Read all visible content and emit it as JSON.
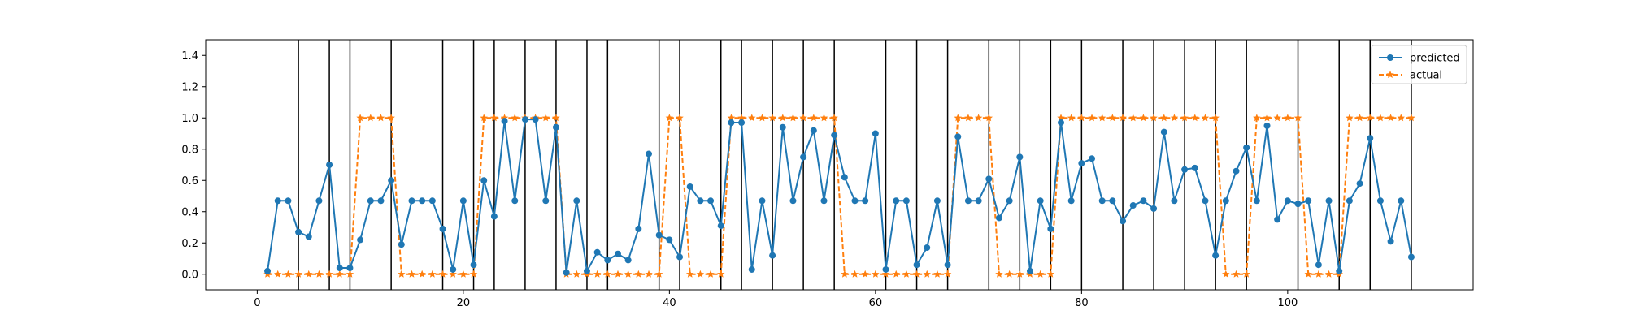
{
  "chart_data": {
    "type": "line",
    "title": "",
    "xlabel": "",
    "ylabel": "",
    "xlim": [
      -5,
      118
    ],
    "ylim": [
      -0.1,
      1.5
    ],
    "xticks": [
      0,
      20,
      40,
      60,
      80,
      100
    ],
    "yticks": [
      0.0,
      0.2,
      0.4,
      0.6,
      0.8,
      1.0,
      1.2,
      1.4
    ],
    "xtick_labels": [
      "0",
      "20",
      "40",
      "60",
      "80",
      "100"
    ],
    "ytick_labels": [
      "0.0",
      "0.2",
      "0.4",
      "0.6",
      "0.8",
      "1.0",
      "1.2",
      "1.4"
    ],
    "legend_position": "top-right",
    "grid": false,
    "boundaries": [
      4,
      7,
      9,
      13,
      18,
      21,
      23,
      26,
      29,
      32,
      34,
      39,
      41,
      45,
      47,
      50,
      53,
      56,
      61,
      64,
      67,
      71,
      74,
      77,
      80,
      84,
      87,
      90,
      93,
      96,
      101,
      105,
      108,
      112
    ],
    "x": [
      1,
      2,
      3,
      4,
      5,
      6,
      7,
      8,
      9,
      10,
      11,
      12,
      13,
      14,
      15,
      16,
      17,
      18,
      19,
      20,
      21,
      22,
      23,
      24,
      25,
      26,
      27,
      28,
      29,
      30,
      31,
      32,
      33,
      34,
      35,
      36,
      37,
      38,
      39,
      40,
      41,
      42,
      43,
      44,
      45,
      46,
      47,
      48,
      49,
      50,
      51,
      52,
      53,
      54,
      55,
      56,
      57,
      58,
      59,
      60,
      61,
      62,
      63,
      64,
      65,
      66,
      67,
      68,
      69,
      70,
      71,
      72,
      73,
      74,
      75,
      76,
      77,
      78,
      79,
      80,
      81,
      82,
      83,
      84,
      85,
      86,
      87,
      88,
      89,
      90,
      91,
      92,
      93,
      94,
      95,
      96,
      97,
      98,
      99,
      100,
      101,
      102,
      103,
      104,
      105,
      106,
      107,
      108,
      109,
      110,
      111,
      112
    ],
    "series": [
      {
        "name": "predicted",
        "color": "#1f77b4",
        "style": "solid",
        "marker": "circle",
        "values": [
          0.02,
          0.47,
          0.47,
          0.27,
          0.24,
          0.47,
          0.7,
          0.04,
          0.04,
          0.22,
          0.47,
          0.47,
          0.6,
          0.19,
          0.47,
          0.47,
          0.47,
          0.29,
          0.03,
          0.47,
          0.06,
          0.6,
          0.37,
          0.98,
          0.47,
          0.99,
          0.99,
          0.47,
          0.94,
          0.01,
          0.47,
          0.02,
          0.14,
          0.09,
          0.13,
          0.09,
          0.29,
          0.77,
          0.25,
          0.22,
          0.11,
          0.56,
          0.47,
          0.47,
          0.31,
          0.97,
          0.97,
          0.03,
          0.47,
          0.12,
          0.94,
          0.47,
          0.75,
          0.92,
          0.47,
          0.89,
          0.62,
          0.47,
          0.47,
          0.9,
          0.03,
          0.47,
          0.47,
          0.06,
          0.17,
          0.47,
          0.06,
          0.88,
          0.47,
          0.47,
          0.61,
          0.36,
          0.47,
          0.75,
          0.02,
          0.47,
          0.29,
          0.97,
          0.47,
          0.71,
          0.74,
          0.47,
          0.47,
          0.34,
          0.44,
          0.47,
          0.42,
          0.91,
          0.47,
          0.67,
          0.68,
          0.47,
          0.12,
          0.47,
          0.66,
          0.81,
          0.47,
          0.95,
          0.35,
          0.47,
          0.45,
          0.47,
          0.06,
          0.47,
          0.02,
          0.47,
          0.58,
          0.87,
          0.47,
          0.21,
          0.47,
          0.11
        ]
      },
      {
        "name": "actual",
        "color": "#ff7f0e",
        "style": "dashed",
        "marker": "star",
        "values": [
          0,
          0,
          0,
          0,
          0,
          0,
          0,
          0,
          0,
          1,
          1,
          1,
          1,
          0,
          0,
          0,
          0,
          0,
          0,
          0,
          0,
          1,
          1,
          1,
          1,
          1,
          1,
          1,
          1,
          0,
          0,
          0,
          0,
          0,
          0,
          0,
          0,
          0,
          0,
          1,
          1,
          0,
          0,
          0,
          0,
          1,
          1,
          1,
          1,
          1,
          1,
          1,
          1,
          1,
          1,
          1,
          0,
          0,
          0,
          0,
          0,
          0,
          0,
          0,
          0,
          0,
          0,
          1,
          1,
          1,
          1,
          0,
          0,
          0,
          0,
          0,
          0,
          1,
          1,
          1,
          1,
          1,
          1,
          1,
          1,
          1,
          1,
          1,
          1,
          1,
          1,
          1,
          1,
          0,
          0,
          0,
          1,
          1,
          1,
          1,
          1,
          0,
          0,
          0,
          0,
          1,
          1,
          1,
          1,
          1,
          1,
          1
        ]
      }
    ]
  }
}
